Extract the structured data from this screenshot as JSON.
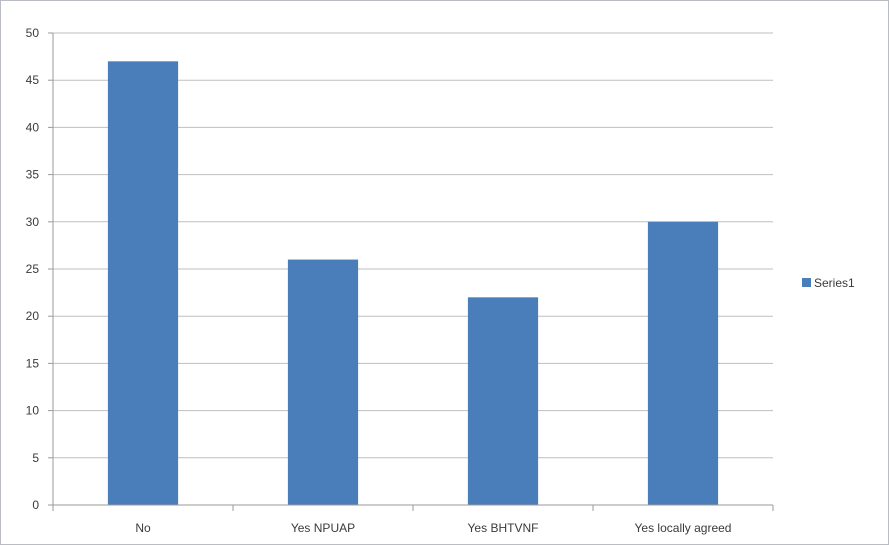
{
  "chart_data": {
    "type": "bar",
    "title": "",
    "xlabel": "",
    "ylabel": "",
    "categories": [
      "No",
      "Yes NPUAP",
      "Yes BHTVNF",
      "Yes locally agreed"
    ],
    "series": [
      {
        "name": "Series1",
        "values": [
          47,
          26,
          22,
          30
        ],
        "color": "#4a7ebb"
      }
    ],
    "ylim": [
      0,
      50
    ],
    "yticks": [
      0,
      5,
      10,
      15,
      20,
      25,
      30,
      35,
      40,
      45,
      50
    ],
    "grid": true,
    "legend_position": "right",
    "gridline_color": "#bfbfbf",
    "axis_color": "#9a9a9a"
  }
}
